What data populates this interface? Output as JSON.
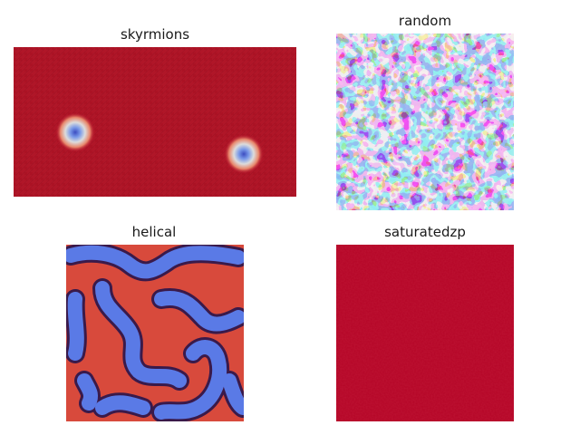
{
  "panels": [
    {
      "title": "skyrmions"
    },
    {
      "title": "random"
    },
    {
      "title": "helical"
    },
    {
      "title": "saturatedzp"
    }
  ],
  "colors": {
    "red_dark": "#b40426",
    "red": "#d84a3c",
    "orange": "#f08a6a",
    "pale": "#dcdcdc",
    "blue": "#5a7ae6",
    "blue_dark": "#3b4cc0",
    "purple_outline": "#4a1858"
  }
}
